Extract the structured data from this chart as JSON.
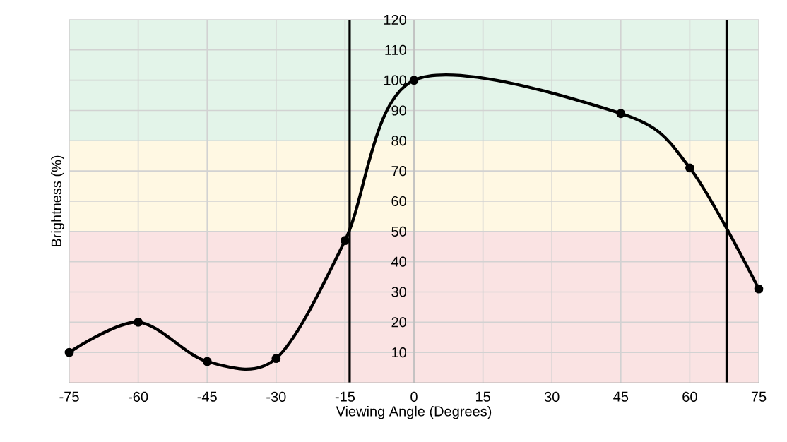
{
  "chart_data": {
    "type": "line",
    "xlabel": "Viewing Angle (Degrees)",
    "ylabel": "Brightness (%)",
    "x": [
      -75,
      -60,
      -45,
      -30,
      -15,
      0,
      45,
      60,
      75
    ],
    "series": [
      {
        "color": "#000000",
        "values": [
          10,
          20,
          7,
          8,
          47,
          100,
          89,
          71,
          31
        ]
      }
    ],
    "xlim": [
      -75,
      75
    ],
    "ylim": [
      0,
      120
    ],
    "xticks": [
      -75,
      -60,
      -45,
      -30,
      -15,
      0,
      15,
      30,
      45,
      60,
      75
    ],
    "yticks": [
      10,
      20,
      30,
      40,
      50,
      60,
      70,
      80,
      90,
      100,
      110,
      120
    ],
    "grid": true,
    "marker": "circle",
    "line_style": "solid",
    "ref_lines": [
      {
        "axis": "x",
        "value": -14,
        "color": "#000000"
      },
      {
        "axis": "x",
        "value": 68,
        "color": "#000000"
      }
    ],
    "bands": [
      {
        "axis": "y",
        "from": 80,
        "to": 120,
        "color": "#e3f4e9"
      },
      {
        "axis": "y",
        "from": 50,
        "to": 80,
        "color": "#fff8e3"
      },
      {
        "axis": "y",
        "from": 0,
        "to": 50,
        "color": "#fae3e3"
      }
    ]
  }
}
